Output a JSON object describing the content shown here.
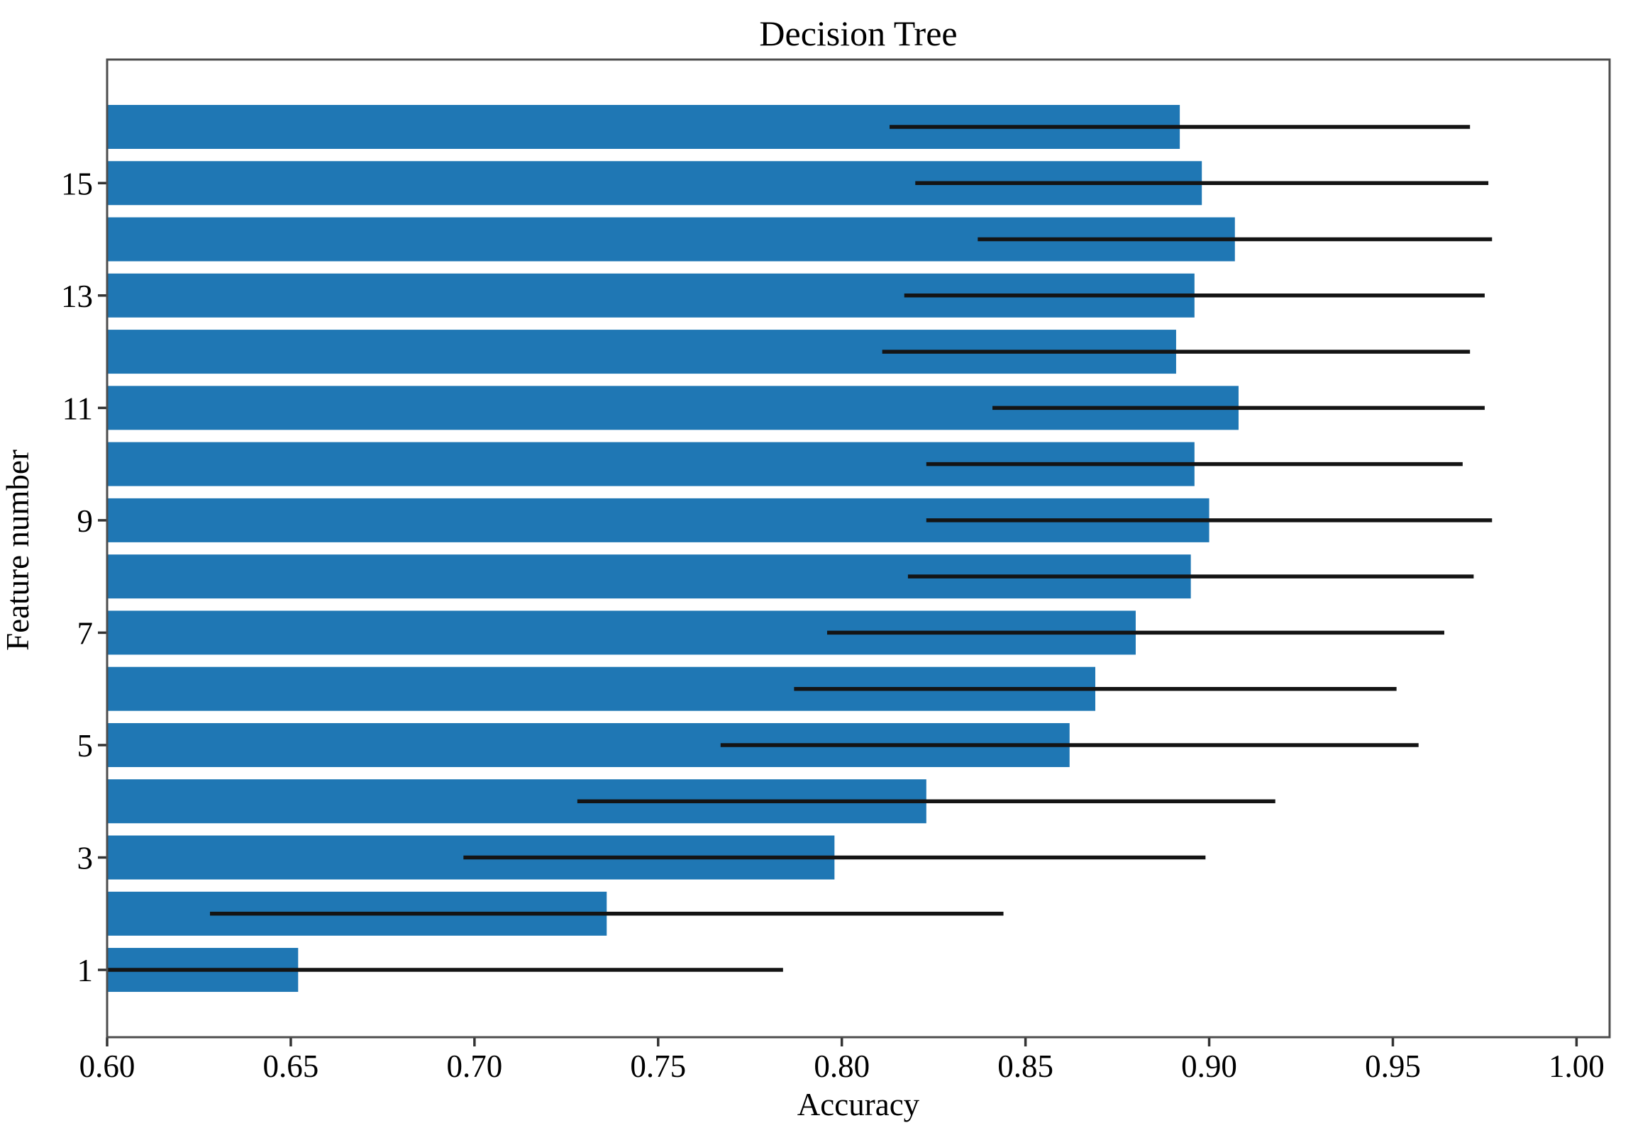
{
  "chart_data": {
    "type": "bar",
    "orientation": "horizontal",
    "title": "Decision Tree",
    "xlabel": "Accuracy",
    "ylabel": "Feature number",
    "xlim": [
      0.6,
      1.009
    ],
    "grid": false,
    "legend": false,
    "bar_color": "#1f77b4",
    "error_color": "#141414",
    "spine_color": "#4d4d4d",
    "text_color": "#000000",
    "xticks": [
      {
        "value": 0.6,
        "label": "0.60"
      },
      {
        "value": 0.65,
        "label": "0.65"
      },
      {
        "value": 0.7,
        "label": "0.70"
      },
      {
        "value": 0.75,
        "label": "0.75"
      },
      {
        "value": 0.8,
        "label": "0.80"
      },
      {
        "value": 0.85,
        "label": "0.85"
      },
      {
        "value": 0.9,
        "label": "0.90"
      },
      {
        "value": 0.95,
        "label": "0.95"
      },
      {
        "value": 1.0,
        "label": "1.00"
      }
    ],
    "yticks": [
      {
        "value": 1,
        "label": "1"
      },
      {
        "value": 3,
        "label": "3"
      },
      {
        "value": 5,
        "label": "5"
      },
      {
        "value": 7,
        "label": "7"
      },
      {
        "value": 9,
        "label": "9"
      },
      {
        "value": 11,
        "label": "11"
      },
      {
        "value": 13,
        "label": "13"
      },
      {
        "value": 15,
        "label": "15"
      }
    ],
    "bars": [
      {
        "feature": 1,
        "accuracy": 0.652,
        "error": 0.132
      },
      {
        "feature": 2,
        "accuracy": 0.736,
        "error": 0.108
      },
      {
        "feature": 3,
        "accuracy": 0.798,
        "error": 0.101
      },
      {
        "feature": 4,
        "accuracy": 0.823,
        "error": 0.095
      },
      {
        "feature": 5,
        "accuracy": 0.862,
        "error": 0.095
      },
      {
        "feature": 6,
        "accuracy": 0.869,
        "error": 0.082
      },
      {
        "feature": 7,
        "accuracy": 0.88,
        "error": 0.084
      },
      {
        "feature": 8,
        "accuracy": 0.895,
        "error": 0.077
      },
      {
        "feature": 9,
        "accuracy": 0.9,
        "error": 0.077
      },
      {
        "feature": 10,
        "accuracy": 0.896,
        "error": 0.073
      },
      {
        "feature": 11,
        "accuracy": 0.908,
        "error": 0.067
      },
      {
        "feature": 12,
        "accuracy": 0.891,
        "error": 0.08
      },
      {
        "feature": 13,
        "accuracy": 0.896,
        "error": 0.079
      },
      {
        "feature": 14,
        "accuracy": 0.907,
        "error": 0.07
      },
      {
        "feature": 15,
        "accuracy": 0.898,
        "error": 0.078
      },
      {
        "feature": 16,
        "accuracy": 0.892,
        "error": 0.079
      }
    ]
  }
}
